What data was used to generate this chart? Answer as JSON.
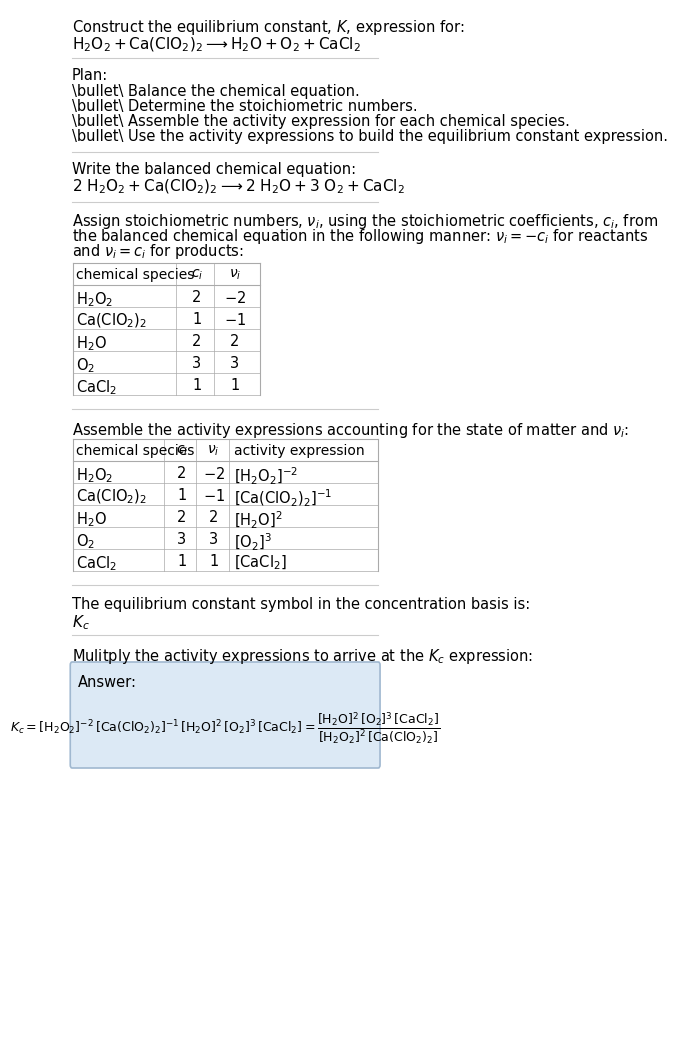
{
  "bg_color": "#ffffff",
  "text_color": "#000000",
  "title_line1": "Construct the equilibrium constant, $K$, expression for:",
  "title_line2": "$\\mathrm{H_2O_2 + Ca(ClO_2)_2 \\longrightarrow H_2O + O_2 + CaCl_2}$",
  "plan_header": "Plan:",
  "plan_items": [
    "\\bullet\\ Balance the chemical equation.",
    "\\bullet\\ Determine the stoichiometric numbers.",
    "\\bullet\\ Assemble the activity expression for each chemical species.",
    "\\bullet\\ Use the activity expressions to build the equilibrium constant expression."
  ],
  "balanced_header": "Write the balanced chemical equation:",
  "balanced_eq": "$\\mathrm{2\\ H_2O_2 + Ca(ClO_2)_2 \\longrightarrow 2\\ H_2O + 3\\ O_2 + CaCl_2}$",
  "stoich_header": "Assign stoichiometric numbers, $\\nu_i$, using the stoichiometric coefficients, $c_i$, from\nthe balanced chemical equation in the following manner: $\\nu_i = -c_i$ for reactants\nand $\\nu_i = c_i$ for products:",
  "table1_cols": [
    "chemical species",
    "$c_i$",
    "$\\nu_i$"
  ],
  "table1_rows": [
    [
      "$\\mathrm{H_2O_2}$",
      "2",
      "$-2$"
    ],
    [
      "$\\mathrm{Ca(ClO_2)_2}$",
      "1",
      "$-1$"
    ],
    [
      "$\\mathrm{H_2O}$",
      "2",
      "2"
    ],
    [
      "$\\mathrm{O_2}$",
      "3",
      "3"
    ],
    [
      "$\\mathrm{CaCl_2}$",
      "1",
      "1"
    ]
  ],
  "activity_header": "Assemble the activity expressions accounting for the state of matter and $\\nu_i$:",
  "table2_cols": [
    "chemical species",
    "$c_i$",
    "$\\nu_i$",
    "activity expression"
  ],
  "table2_rows": [
    [
      "$\\mathrm{H_2O_2}$",
      "2",
      "$-2$",
      "$[\\mathrm{H_2O_2}]^{-2}$"
    ],
    [
      "$\\mathrm{Ca(ClO_2)_2}$",
      "1",
      "$-1$",
      "$[\\mathrm{Ca(ClO_2)_2}]^{-1}$"
    ],
    [
      "$\\mathrm{H_2O}$",
      "2",
      "2",
      "$[\\mathrm{H_2O}]^{2}$"
    ],
    [
      "$\\mathrm{O_2}$",
      "3",
      "3",
      "$[\\mathrm{O_2}]^{3}$"
    ],
    [
      "$\\mathrm{CaCl_2}$",
      "1",
      "1",
      "$[\\mathrm{CaCl_2}]$"
    ]
  ],
  "kc_header": "The equilibrium constant symbol in the concentration basis is:",
  "kc_symbol": "$K_c$",
  "multiply_header": "Mulitply the activity expressions to arrive at the $K_c$ expression:",
  "answer_label": "Answer:",
  "answer_eq1": "$K_c = [\\mathrm{H_2O_2}]^{-2}\\,[\\mathrm{Ca(ClO_2)_2}]^{-1}\\,[\\mathrm{H_2O}]^{2}\\,[\\mathrm{O_2}]^{3}\\,[\\mathrm{CaCl_2}] = \\dfrac{[\\mathrm{H_2O}]^{2}\\,[\\mathrm{O_2}]^{3}\\,[\\mathrm{CaCl_2}]}{[\\mathrm{H_2O_2}]^{2}\\,[\\mathrm{Ca(ClO_2)_2}]}$",
  "answer_box_color": "#dce9f5",
  "answer_box_edge": "#a0b8d0",
  "table_line_color": "#aaaaaa",
  "separator_color": "#cccccc"
}
